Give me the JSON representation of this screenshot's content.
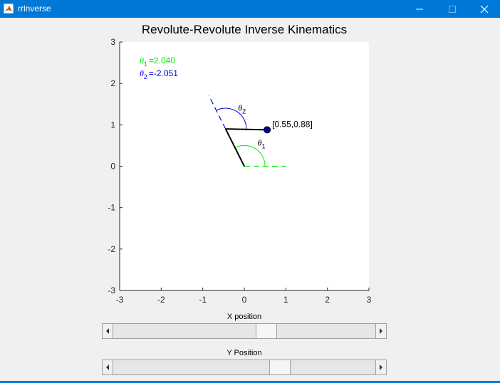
{
  "window": {
    "title": "rrlnverse",
    "app_icon": "matlab-icon",
    "controls": [
      "minimize-icon",
      "maximize-icon",
      "close-icon"
    ],
    "titlebar_color": "#0078d7"
  },
  "plot": {
    "title": "Revolute-Revolute Inverse Kinematics",
    "theta1_label": "=2.040",
    "theta2_label": "=-2.051",
    "theta1_color": "#00ee00",
    "theta2_color": "#0000ee",
    "point_label": "[0.55,0.88]",
    "angle_label_theta": "θ",
    "angle_label_1": "1",
    "angle_label_2": "2"
  },
  "chart_data": {
    "type": "line",
    "title": "Revolute-Revolute Inverse Kinematics",
    "xlabel": "",
    "ylabel": "",
    "xlim": [
      -3,
      3
    ],
    "ylim": [
      -3,
      3
    ],
    "xticks": [
      "-3",
      "-2",
      "-1",
      "0",
      "1",
      "2",
      "3"
    ],
    "yticks": [
      "3",
      "2",
      "1",
      "0",
      "-1",
      "-2",
      "-3"
    ],
    "grid": false,
    "arm": {
      "base": [
        0,
        0
      ],
      "joint": [
        -0.45,
        0.9
      ],
      "end_effector": [
        0.55,
        0.88
      ]
    },
    "theta1": 2.04,
    "theta2": -2.051
  },
  "sliders": {
    "x": {
      "label": "X position",
      "value": 0.55,
      "min": -3,
      "max": 3
    },
    "y": {
      "label": "Y Position",
      "value": 0.88,
      "min": -3,
      "max": 3
    }
  }
}
